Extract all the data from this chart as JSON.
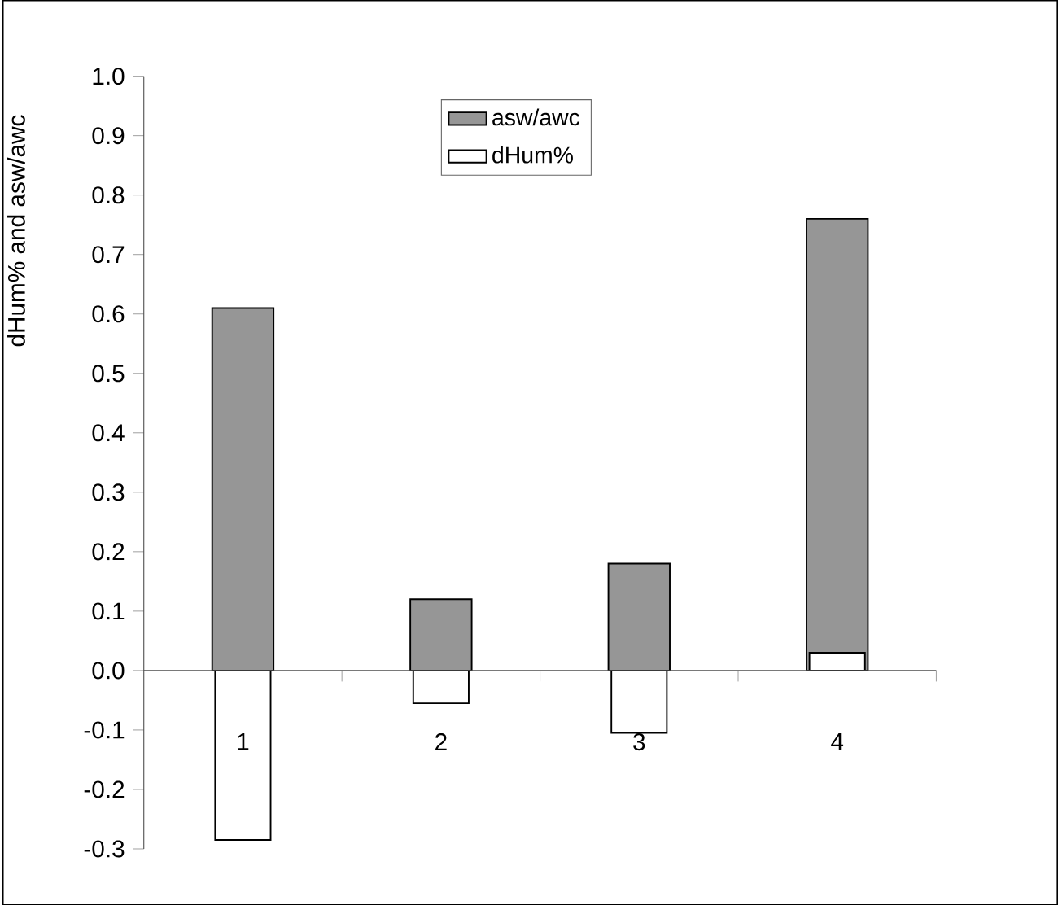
{
  "chart_data": {
    "type": "bar",
    "ylabel": "dHum% and asw/awc",
    "categories": [
      "1",
      "2",
      "3",
      "4"
    ],
    "series": [
      {
        "name": "asw/awc",
        "color": "#969696",
        "values": [
          0.61,
          0.12,
          0.18,
          0.76
        ]
      },
      {
        "name": "dHum%",
        "color": "#ffffff",
        "values": [
          -0.285,
          -0.055,
          -0.105,
          0.03
        ]
      }
    ],
    "ylim": [
      -0.3,
      1.0
    ],
    "yticks": [
      -0.3,
      -0.2,
      -0.1,
      {
        "value": 0,
        "label": "0.0"
      },
      0.1,
      0.2,
      0.3,
      0.4,
      0.5,
      0.6,
      0.7,
      0.8,
      0.9,
      {
        "value": 1,
        "label": "1.0"
      }
    ],
    "legend": "top",
    "grid": false
  }
}
